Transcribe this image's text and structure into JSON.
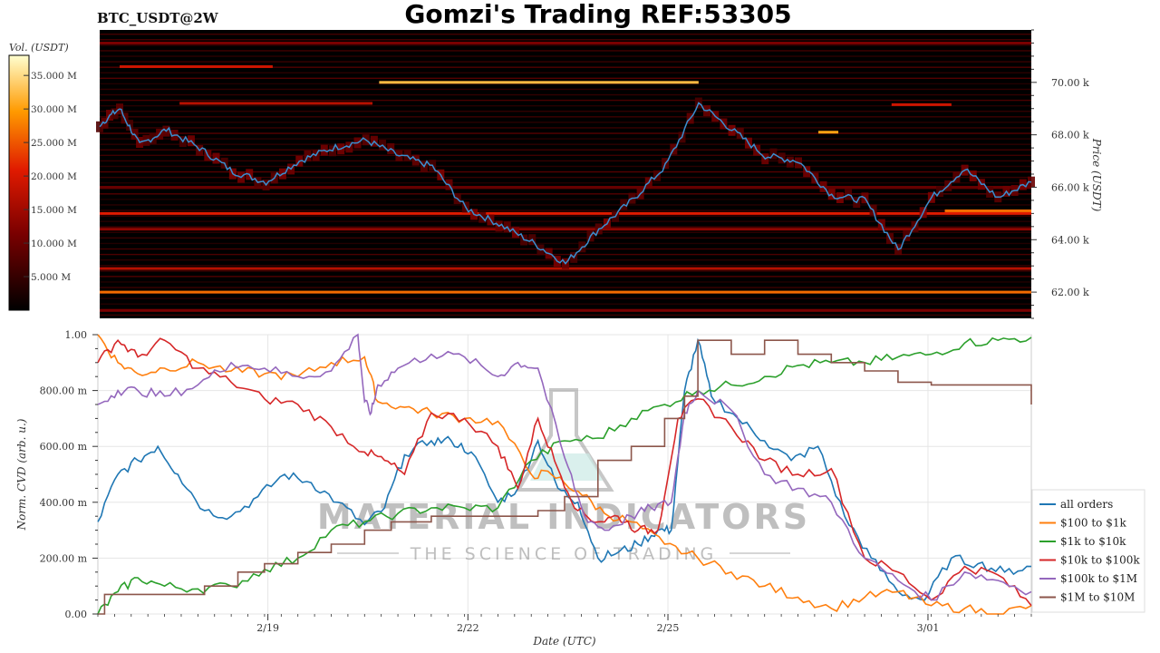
{
  "header": {
    "pair": "BTC_USDT@2W",
    "title": "Gomzi's Trading REF:53305"
  },
  "colorbar": {
    "label": "Vol. (USDT)",
    "ticks": [
      "35.000 M",
      "30.000 M",
      "25.000 M",
      "20.000 M",
      "15.000 M",
      "10.000 M",
      "5.000 M"
    ],
    "tick_values": [
      35,
      30,
      25,
      20,
      15,
      10,
      5
    ],
    "max": 38
  },
  "watermark": {
    "line1": "MATERIAL INDICATORS",
    "line2": "THE SCIENCE OF TRADING"
  },
  "colors": {
    "price_line": "#3a8fd0",
    "heatmap_bg": "#000000",
    "all_orders": "#1f77b4",
    "100_1k": "#ff7f0e",
    "1k_10k": "#2ca02c",
    "10k_100k": "#d62728",
    "100k_1m": "#9467bd",
    "1m_10m": "#8c564b"
  },
  "chart_data": [
    {
      "type": "heatmap",
      "title": "",
      "ylabel": "Price (USDT)",
      "ylim": [
        61000,
        72000
      ],
      "yticks": [
        62000,
        64000,
        66000,
        68000,
        70000
      ],
      "ytick_labels": [
        "62.00 k",
        "64.00 k",
        "66.00 k",
        "68.00 k",
        "70.00 k"
      ],
      "price_series": {
        "x": [
          0,
          0.3,
          0.6,
          1.0,
          1.5,
          2.0,
          2.5,
          3.0,
          3.5,
          4.0,
          4.5,
          5.0,
          5.5,
          6.0,
          6.5,
          7.0,
          7.5,
          8.0,
          8.5,
          9.0,
          9.5,
          10.0,
          10.5,
          11.0,
          11.5,
          12.0,
          12.5,
          13.0,
          13.5,
          14.0
        ],
        "y": [
          68400,
          69000,
          67600,
          68200,
          67500,
          66600,
          66200,
          67000,
          67500,
          67800,
          67200,
          66800,
          65200,
          64600,
          63900,
          63100,
          64400,
          65500,
          66800,
          69200,
          68200,
          67200,
          67000,
          65700,
          65500,
          63600,
          65600,
          66700,
          65600,
          66200
        ]
      },
      "liquidity_bands": [
        {
          "price": 70000,
          "x_start": 4.2,
          "x_end": 9.0,
          "intensity": 0.85
        },
        {
          "price": 70600,
          "x_start": 0.3,
          "x_end": 2.6,
          "intensity": 0.5
        },
        {
          "price": 69200,
          "x_start": 1.2,
          "x_end": 4.1,
          "intensity": 0.45
        },
        {
          "price": 68100,
          "x_start": 10.8,
          "x_end": 11.1,
          "intensity": 0.8
        },
        {
          "price": 69150,
          "x_start": 11.9,
          "x_end": 12.8,
          "intensity": 0.5
        },
        {
          "price": 65000,
          "x_start": 0.0,
          "x_end": 14.0,
          "intensity": 0.55
        },
        {
          "price": 65100,
          "x_start": 12.7,
          "x_end": 14.0,
          "intensity": 0.7
        },
        {
          "price": 62000,
          "x_start": 0.0,
          "x_end": 14.0,
          "intensity": 0.7
        },
        {
          "price": 62900,
          "x_start": 0.0,
          "x_end": 14.0,
          "intensity": 0.45
        },
        {
          "price": 71500,
          "x_start": 0.0,
          "x_end": 14.0,
          "intensity": 0.3
        },
        {
          "price": 64400,
          "x_start": 0.0,
          "x_end": 14.0,
          "intensity": 0.35
        },
        {
          "price": 66000,
          "x_start": 0.0,
          "x_end": 14.0,
          "intensity": 0.25
        },
        {
          "price": 61300,
          "x_start": 0.0,
          "x_end": 14.0,
          "intensity": 0.3
        }
      ]
    },
    {
      "type": "line",
      "title": "",
      "xlabel": "Date (UTC)",
      "ylabel": "Norm. CVD (arb. u.)",
      "ylim": [
        0,
        1
      ],
      "xlim": [
        0,
        14
      ],
      "yticks": [
        0,
        0.2,
        0.4,
        0.6,
        0.8,
        1.0
      ],
      "ytick_labels": [
        "0.00",
        "200.00 m",
        "400.00 m",
        "600.00 m",
        "800.00 m",
        "1.00"
      ],
      "xticks": [
        2.55,
        5.55,
        8.55,
        12.45
      ],
      "xtick_labels": [
        "2/19",
        "2/22",
        "2/25",
        "3/01"
      ],
      "legend_position": "lower-right",
      "series": [
        {
          "name": "all orders",
          "color_key": "all_orders",
          "x": [
            0,
            0.3,
            0.6,
            0.9,
            1.2,
            1.6,
            2.0,
            2.4,
            2.8,
            3.2,
            3.6,
            4.0,
            4.3,
            4.6,
            5.0,
            5.3,
            5.6,
            6.0,
            6.3,
            6.6,
            6.9,
            7.2,
            7.5,
            7.8,
            8.1,
            8.4,
            8.6,
            8.8,
            9.0,
            9.2,
            9.6,
            10.0,
            10.4,
            10.8,
            11.2,
            11.6,
            12.0,
            12.4,
            12.8,
            13.2,
            13.6,
            14.0
          ],
          "y": [
            0.33,
            0.5,
            0.55,
            0.6,
            0.5,
            0.37,
            0.35,
            0.42,
            0.5,
            0.47,
            0.4,
            0.32,
            0.38,
            0.57,
            0.62,
            0.62,
            0.58,
            0.4,
            0.45,
            0.62,
            0.45,
            0.4,
            0.2,
            0.22,
            0.25,
            0.3,
            0.3,
            0.8,
            0.98,
            0.78,
            0.7,
            0.62,
            0.55,
            0.6,
            0.35,
            0.2,
            0.08,
            0.05,
            0.2,
            0.18,
            0.15,
            0.17
          ]
        },
        {
          "name": "$100 to $1k",
          "color_key": "100_1k",
          "x": [
            0,
            0.3,
            0.6,
            1.0,
            1.5,
            2.0,
            2.5,
            3.0,
            3.5,
            4.0,
            4.2,
            4.6,
            5.0,
            5.5,
            6.0,
            6.5,
            6.8,
            7.2,
            7.6,
            8.0,
            8.5,
            9.0,
            9.5,
            10.0,
            10.5,
            11.0,
            11.5,
            12.0,
            12.5,
            13.0,
            13.5,
            14.0
          ],
          "y": [
            1.0,
            0.9,
            0.86,
            0.88,
            0.9,
            0.87,
            0.86,
            0.85,
            0.9,
            0.92,
            0.76,
            0.74,
            0.72,
            0.7,
            0.69,
            0.5,
            0.5,
            0.44,
            0.36,
            0.33,
            0.25,
            0.2,
            0.15,
            0.1,
            0.06,
            0.02,
            0.06,
            0.08,
            0.03,
            0.02,
            0.0,
            0.03
          ]
        },
        {
          "name": "$1k to $10k",
          "color_key": "1k_10k",
          "x": [
            0,
            0.3,
            0.6,
            1.0,
            1.5,
            2.0,
            2.5,
            3.0,
            3.5,
            4.0,
            4.5,
            5.0,
            5.5,
            6.0,
            6.5,
            7.0,
            7.5,
            8.0,
            8.5,
            9.0,
            9.5,
            10.0,
            10.5,
            11.0,
            11.5,
            12.0,
            12.5,
            13.0,
            13.5,
            14.0
          ],
          "y": [
            0.0,
            0.08,
            0.13,
            0.1,
            0.09,
            0.1,
            0.16,
            0.2,
            0.3,
            0.33,
            0.36,
            0.38,
            0.38,
            0.38,
            0.55,
            0.62,
            0.63,
            0.7,
            0.75,
            0.8,
            0.82,
            0.85,
            0.89,
            0.9,
            0.9,
            0.92,
            0.93,
            0.97,
            0.98,
            0.99
          ]
        },
        {
          "name": "$10k to $100k",
          "color_key": "10k_100k",
          "x": [
            0,
            0.3,
            0.6,
            1.0,
            1.5,
            2.0,
            2.5,
            3.0,
            3.5,
            4.0,
            4.3,
            4.6,
            5.0,
            5.5,
            6.0,
            6.3,
            6.6,
            6.9,
            7.2,
            7.5,
            7.8,
            8.1,
            8.4,
            8.7,
            9.0,
            9.5,
            10.0,
            10.5,
            11.0,
            11.5,
            12.0,
            12.5,
            13.0,
            13.5,
            14.0
          ],
          "y": [
            0.9,
            0.98,
            0.92,
            0.98,
            0.88,
            0.83,
            0.77,
            0.75,
            0.67,
            0.58,
            0.55,
            0.5,
            0.72,
            0.7,
            0.6,
            0.45,
            0.7,
            0.52,
            0.37,
            0.33,
            0.35,
            0.3,
            0.3,
            0.7,
            0.77,
            0.67,
            0.55,
            0.5,
            0.52,
            0.2,
            0.15,
            0.05,
            0.17,
            0.14,
            0.03
          ]
        },
        {
          "name": "$100k to $1M",
          "color_key": "100k_1m",
          "x": [
            0,
            0.3,
            0.6,
            1.0,
            1.5,
            2.0,
            2.5,
            3.0,
            3.5,
            3.9,
            4.0,
            4.1,
            4.2,
            4.5,
            5.0,
            5.5,
            6.0,
            6.3,
            6.6,
            7.0,
            7.3,
            7.6,
            8.0,
            8.3,
            8.6,
            8.8,
            9.0,
            9.5,
            10.0,
            10.5,
            11.0,
            11.5,
            12.0,
            12.5,
            13.0,
            13.5,
            14.0
          ],
          "y": [
            0.75,
            0.8,
            0.8,
            0.78,
            0.82,
            0.9,
            0.88,
            0.85,
            0.87,
            1.0,
            0.76,
            0.72,
            0.82,
            0.88,
            0.93,
            0.92,
            0.85,
            0.9,
            0.88,
            0.56,
            0.35,
            0.3,
            0.35,
            0.38,
            0.4,
            0.72,
            0.8,
            0.73,
            0.5,
            0.45,
            0.4,
            0.2,
            0.12,
            0.05,
            0.15,
            0.12,
            0.08
          ]
        },
        {
          "name": "$1M to $10M",
          "color_key": "1m_10m",
          "x": [
            0,
            0.1,
            0.2,
            1.6,
            2.1,
            2.5,
            3.0,
            3.5,
            4.0,
            4.4,
            5.0,
            6.0,
            6.6,
            7.0,
            7.5,
            8.0,
            8.5,
            8.8,
            9.0,
            9.2,
            9.5,
            10.0,
            10.5,
            11.0,
            11.5,
            12.0,
            12.5,
            13.0,
            13.5,
            14.0
          ],
          "y": [
            0.0,
            0.07,
            0.07,
            0.1,
            0.15,
            0.18,
            0.22,
            0.25,
            0.3,
            0.33,
            0.35,
            0.35,
            0.37,
            0.42,
            0.55,
            0.6,
            0.7,
            0.78,
            0.98,
            0.98,
            0.93,
            0.98,
            0.93,
            0.9,
            0.87,
            0.83,
            0.82,
            0.82,
            0.82,
            0.75
          ]
        }
      ]
    }
  ]
}
